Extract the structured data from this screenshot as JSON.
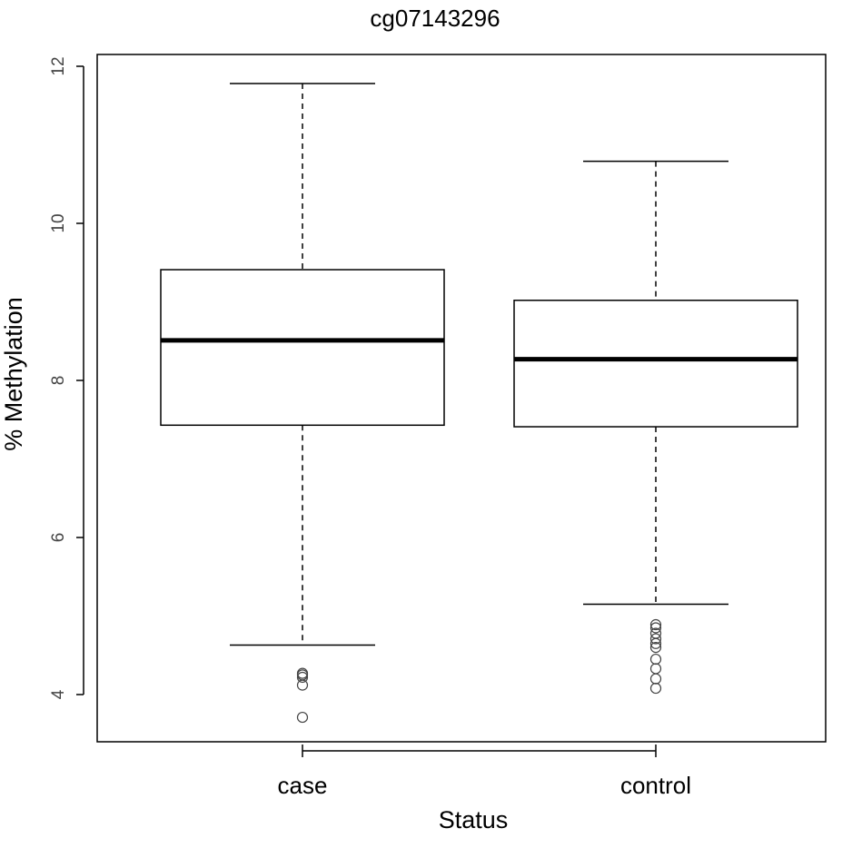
{
  "chart_data": {
    "type": "box",
    "title": "cg07143296",
    "xlabel": "Status",
    "ylabel": "% Methylation",
    "ylim": [
      3.4,
      12.1
    ],
    "yticks": [
      4,
      6,
      8,
      10,
      12
    ],
    "categories": [
      "case",
      "control"
    ],
    "boxes": [
      {
        "category": "case",
        "whisker_low": 4.63,
        "q1": 7.43,
        "median": 8.51,
        "q3": 9.41,
        "whisker_high": 11.78,
        "outliers": [
          4.27,
          4.25,
          4.22,
          4.12,
          3.71
        ]
      },
      {
        "category": "control",
        "whisker_low": 5.15,
        "q1": 7.41,
        "median": 8.27,
        "q3": 9.02,
        "whisker_high": 10.79,
        "outliers": [
          4.89,
          4.85,
          4.78,
          4.71,
          4.65,
          4.6,
          4.45,
          4.33,
          4.2,
          4.08
        ]
      }
    ],
    "grid": false,
    "legend": "none"
  }
}
